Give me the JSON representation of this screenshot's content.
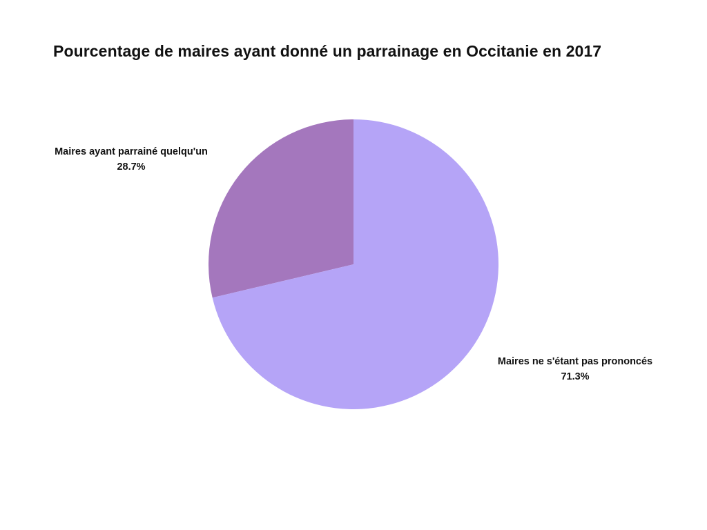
{
  "chart_data": {
    "type": "pie",
    "title": "Pourcentage de maires ayant donné un parrainage en Occitanie en 2017",
    "slices": [
      {
        "label": "Maires ayant parrainé quelqu'un",
        "value": 28.7,
        "value_label": "28.7%",
        "color": "#a477bd"
      },
      {
        "label": "Maires ne s'étant pas prononcés",
        "value": 71.3,
        "value_label": "71.3%",
        "color": "#b5a4f7"
      }
    ],
    "start": "12 o'clock",
    "direction": "counter-clockwise",
    "legend": "none"
  }
}
